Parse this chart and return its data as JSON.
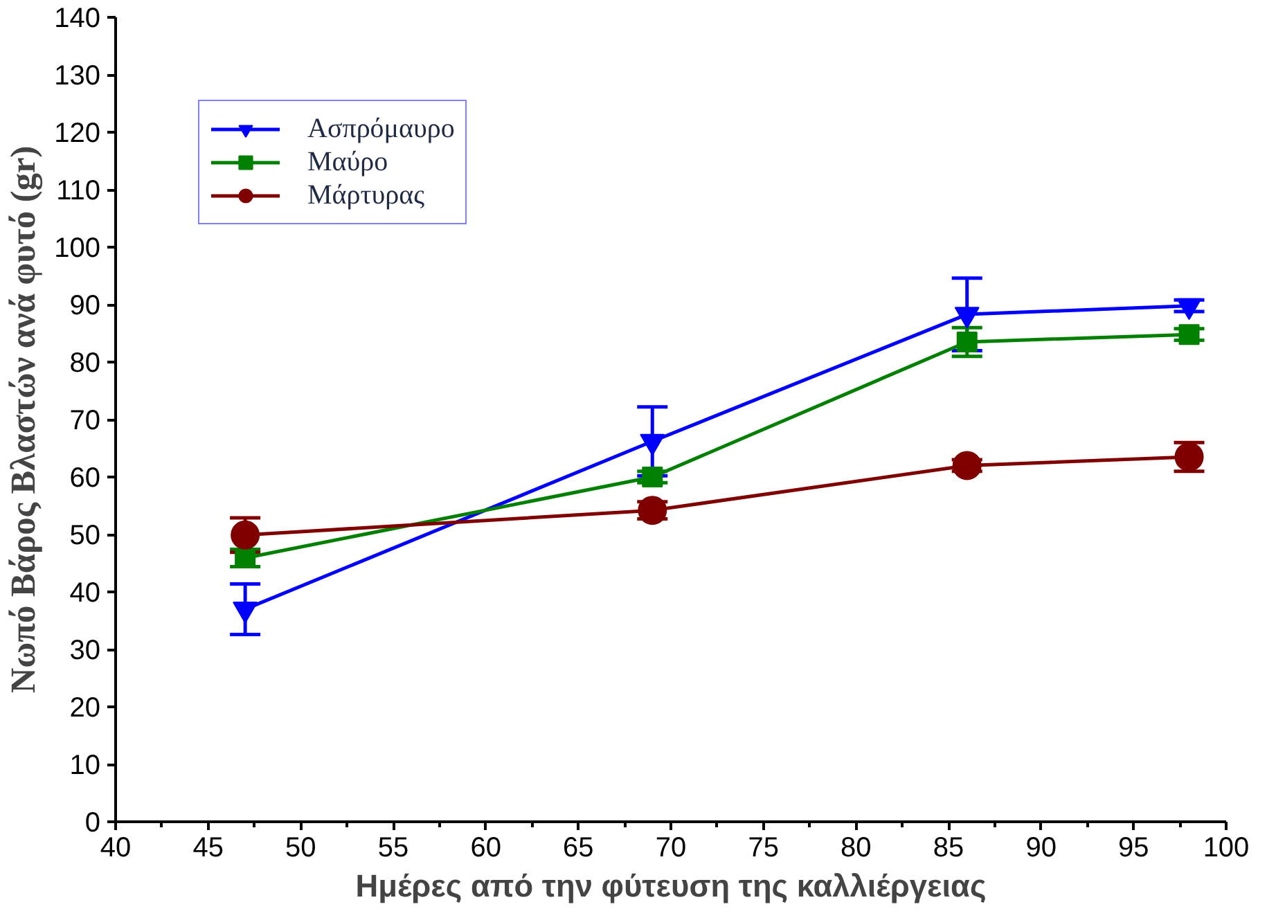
{
  "chart_data": {
    "type": "line",
    "xlabel": "Ημέρες από την φύτευση της καλλιέργειας",
    "ylabel": "Νωπό Βάρος Βλαστών ανά φυτό (gr)",
    "x": [
      47,
      69,
      86,
      98
    ],
    "xlim": [
      40,
      100
    ],
    "xticks": [
      40,
      45,
      50,
      55,
      60,
      65,
      70,
      75,
      80,
      85,
      90,
      95,
      100
    ],
    "ylim": [
      0,
      140
    ],
    "yticks": [
      0,
      10,
      20,
      30,
      40,
      50,
      60,
      70,
      80,
      90,
      100,
      110,
      120,
      130,
      140
    ],
    "grid": false,
    "legend": "top left",
    "series": [
      {
        "name": "Ασπρόμαυρο",
        "color": "#0000ff",
        "marker": "triangle",
        "values": [
          37,
          66.2,
          88.3,
          89.8
        ],
        "errors": [
          4.4,
          6,
          6.3,
          1
        ]
      },
      {
        "name": "Μαύρο",
        "color": "#008000",
        "marker": "square",
        "values": [
          45.9,
          60,
          83.5,
          84.8
        ],
        "errors": [
          1.5,
          1,
          2.5,
          1
        ]
      },
      {
        "name": "Μάρτυρας",
        "color": "#800000",
        "marker": "circle",
        "values": [
          49.9,
          54.2,
          62,
          63.5
        ],
        "errors": [
          3,
          1.5,
          1,
          2.5
        ]
      }
    ]
  }
}
